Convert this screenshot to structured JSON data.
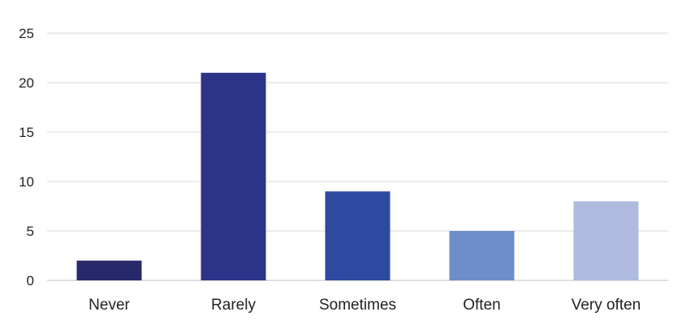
{
  "chart_data": {
    "type": "bar",
    "title": "",
    "xlabel": "",
    "ylabel": "",
    "categories": [
      "Never",
      "Rarely",
      "Sometimes",
      "Often",
      "Very often"
    ],
    "values": [
      2,
      21,
      9,
      5,
      8
    ],
    "bar_colors": [
      "#27296a",
      "#2b3488",
      "#2d4aa0",
      "#6e8dcb",
      "#aebade"
    ],
    "ylim": [
      0,
      25
    ],
    "yticks": [
      0,
      5,
      10,
      15,
      20,
      25
    ],
    "grid": true,
    "legend": "none"
  }
}
